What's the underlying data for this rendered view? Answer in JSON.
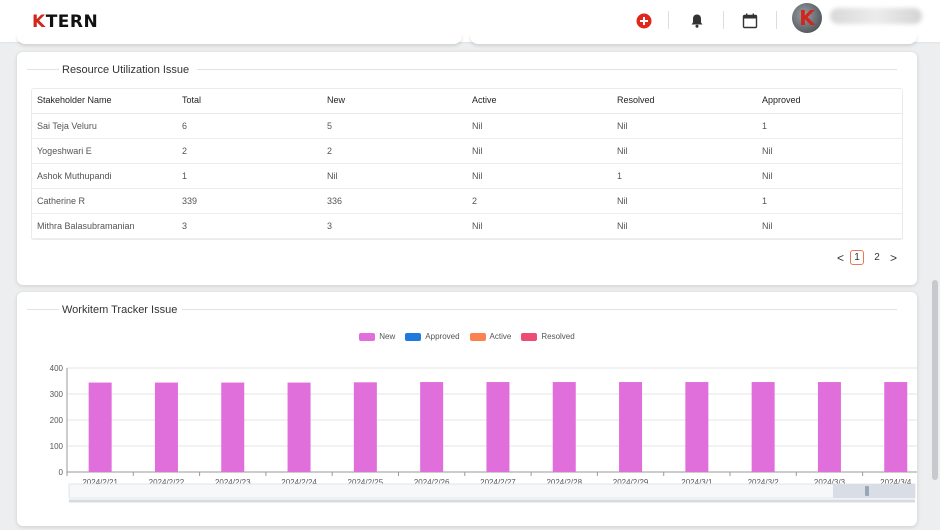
{
  "header": {
    "logo_k": "K",
    "logo_rest": "TERN",
    "icons": [
      "add-circle-icon",
      "bell-icon",
      "calendar-icon"
    ],
    "avatar_letter": "K"
  },
  "resource_card": {
    "title": "Resource Utilization Issue",
    "columns": [
      "Stakeholder Name",
      "Total",
      "New",
      "Active",
      "Resolved",
      "Approved"
    ],
    "rows": [
      [
        "Sai Teja Veluru",
        "6",
        "5",
        "Nil",
        "Nil",
        "1"
      ],
      [
        "Yogeshwari E",
        "2",
        "2",
        "Nil",
        "Nil",
        "Nil"
      ],
      [
        "Ashok Muthupandi",
        "1",
        "Nil",
        "Nil",
        "1",
        "Nil"
      ],
      [
        "Catherine R",
        "339",
        "336",
        "2",
        "Nil",
        "1"
      ],
      [
        "Mithra Balasubramanian",
        "3",
        "3",
        "Nil",
        "Nil",
        "Nil"
      ]
    ],
    "pagination": {
      "prev": "<",
      "pages": [
        "1",
        "2"
      ],
      "current": "1",
      "next": ">"
    }
  },
  "tracker_card": {
    "title": "Workitem Tracker Issue"
  },
  "chart_data": {
    "type": "bar",
    "legend": [
      {
        "name": "New",
        "color": "#e06fdc"
      },
      {
        "name": "Approved",
        "color": "#1f7adf"
      },
      {
        "name": "Active",
        "color": "#fb8350"
      },
      {
        "name": "Resolved",
        "color": "#ee4d73"
      }
    ],
    "categories": [
      "2024/2/21",
      "2024/2/22",
      "2024/2/23",
      "2024/2/24",
      "2024/2/25",
      "2024/2/26",
      "2024/2/27",
      "2024/2/28",
      "2024/2/29",
      "2024/3/1",
      "2024/3/2",
      "2024/3/3",
      "2024/3/4"
    ],
    "series": [
      {
        "name": "New",
        "values": [
          344,
          344,
          344,
          344,
          345,
          346,
          346,
          346,
          346,
          346,
          346,
          346,
          346
        ]
      }
    ],
    "ylim": [
      0,
      400
    ],
    "yticks": [
      0,
      100,
      200,
      300,
      400
    ],
    "grid": true,
    "legend_position": "top-center",
    "x_zoom_slider": true
  }
}
